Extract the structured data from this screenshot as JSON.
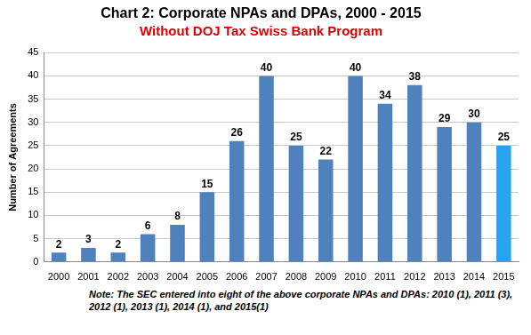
{
  "chart_data": {
    "type": "bar",
    "title": "Chart 2: Corporate NPAs and DPAs, 2000 - 2015",
    "subtitle": "Without DOJ Tax Swiss Bank Program",
    "y_label": "Number of Agreements",
    "note": "Note: The SEC entered into eight of the above corporate NPAs and DPAs: 2010 (1), 2011 (3), 2012 (1), 2013 (1), 2014 (1), and 2015(1)",
    "categories": [
      "2000",
      "2001",
      "2002",
      "2003",
      "2004",
      "2005",
      "2006",
      "2007",
      "2008",
      "2009",
      "2010",
      "2011",
      "2012",
      "2013",
      "2014",
      "2015"
    ],
    "values": [
      2,
      3,
      2,
      6,
      8,
      15,
      26,
      40,
      25,
      22,
      40,
      34,
      38,
      29,
      30,
      25
    ],
    "colors": [
      "#4f81bd",
      "#4f81bd",
      "#4f81bd",
      "#4f81bd",
      "#4f81bd",
      "#4f81bd",
      "#4f81bd",
      "#4f81bd",
      "#4f81bd",
      "#4f81bd",
      "#4f81bd",
      "#4f81bd",
      "#4f81bd",
      "#4f81bd",
      "#4f81bd",
      "#29a3f0"
    ],
    "ylim": [
      0,
      45
    ],
    "yticks": [
      0,
      5,
      10,
      15,
      20,
      25,
      30,
      35,
      40,
      45
    ],
    "grid": true,
    "data_labels": true
  }
}
